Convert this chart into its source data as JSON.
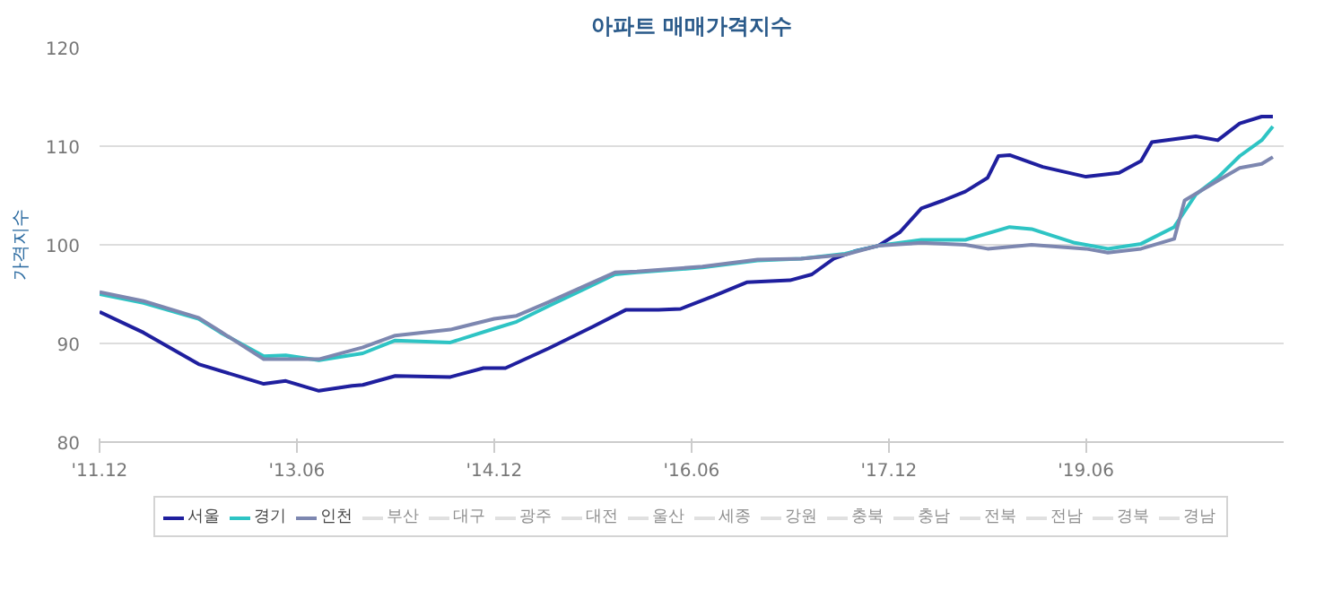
{
  "chart_data": {
    "type": "line",
    "title": "아파트 매매가격지수",
    "ylabel": "가격지수",
    "ylim": [
      80,
      120
    ],
    "yticks": [
      80,
      90,
      100,
      110,
      120
    ],
    "xlim": [
      "2011-12",
      "2020-12"
    ],
    "xticks": [
      {
        "value": "2011-12",
        "label": "'11.12"
      },
      {
        "value": "2013-06",
        "label": "'13.06"
      },
      {
        "value": "2014-12",
        "label": "'14.12"
      },
      {
        "value": "2016-06",
        "label": "'16.06"
      },
      {
        "value": "2017-12",
        "label": "'17.12"
      },
      {
        "value": "2019-06",
        "label": "'19.06"
      }
    ],
    "grid": "y",
    "legend": "bottom",
    "marker": "none",
    "line_style": "solid",
    "series": [
      {
        "name": "서울",
        "color": "#1f1f9e",
        "x": [
          "2011-12",
          "2012-04",
          "2012-09",
          "2013-03",
          "2013-05",
          "2013-08",
          "2013-11",
          "2013-12",
          "2014-03",
          "2014-08",
          "2014-11",
          "2015-01",
          "2015-05",
          "2015-09",
          "2015-12",
          "2016-03",
          "2016-05",
          "2016-08",
          "2016-11",
          "2017-03",
          "2017-05",
          "2017-07",
          "2017-09",
          "2017-11",
          "2018-01",
          "2018-03",
          "2018-05",
          "2018-07",
          "2018-09",
          "2018-10",
          "2018-11",
          "2019-02",
          "2019-06",
          "2019-09",
          "2019-11",
          "2019-12",
          "2020-04",
          "2020-06",
          "2020-08",
          "2020-10",
          "2020-11"
        ],
        "values": [
          93.2,
          91.1,
          87.9,
          85.9,
          86.2,
          85.2,
          85.7,
          85.8,
          86.7,
          86.6,
          87.5,
          87.5,
          89.5,
          91.7,
          93.4,
          93.4,
          93.5,
          94.8,
          96.2,
          96.4,
          97.0,
          98.6,
          99.4,
          99.9,
          101.3,
          103.7,
          104.5,
          105.4,
          106.8,
          109.0,
          109.1,
          107.9,
          106.9,
          107.3,
          108.5,
          110.4,
          111.0,
          110.6,
          112.3,
          113.0,
          113.0
        ]
      },
      {
        "name": "경기",
        "color": "#2ec4c4",
        "x": [
          "2011-12",
          "2012-04",
          "2012-09",
          "2012-11",
          "2013-03",
          "2013-05",
          "2013-08",
          "2013-12",
          "2014-03",
          "2014-08",
          "2014-12",
          "2015-02",
          "2015-05",
          "2015-08",
          "2015-11",
          "2016-01",
          "2016-07",
          "2016-12",
          "2017-04",
          "2017-08",
          "2017-11",
          "2018-03",
          "2018-07",
          "2018-11",
          "2019-01",
          "2019-05",
          "2019-08",
          "2019-11",
          "2020-02",
          "2020-04",
          "2020-06",
          "2020-08",
          "2020-10",
          "2020-11"
        ],
        "values": [
          95.0,
          94.1,
          92.5,
          91.1,
          88.7,
          88.8,
          88.3,
          89.0,
          90.3,
          90.1,
          91.5,
          92.2,
          93.8,
          95.4,
          97.0,
          97.2,
          97.7,
          98.4,
          98.6,
          99.1,
          99.9,
          100.5,
          100.5,
          101.8,
          101.6,
          100.2,
          99.6,
          100.1,
          101.8,
          105.1,
          106.8,
          109.0,
          110.6,
          112.0
        ]
      },
      {
        "name": "인천",
        "color": "#7d87b0",
        "x": [
          "2011-12",
          "2012-04",
          "2012-09",
          "2012-11",
          "2013-03",
          "2013-08",
          "2013-12",
          "2014-03",
          "2014-08",
          "2014-12",
          "2015-02",
          "2015-05",
          "2015-08",
          "2015-11",
          "2016-01",
          "2016-07",
          "2016-12",
          "2017-04",
          "2017-08",
          "2017-11",
          "2018-03",
          "2018-07",
          "2018-09",
          "2019-01",
          "2019-06",
          "2019-08",
          "2019-11",
          "2020-02",
          "2020-03",
          "2020-06",
          "2020-08",
          "2020-10",
          "2020-11"
        ],
        "values": [
          95.2,
          94.3,
          92.6,
          91.2,
          88.4,
          88.4,
          89.6,
          90.8,
          91.4,
          92.5,
          92.8,
          94.2,
          95.7,
          97.2,
          97.3,
          97.8,
          98.5,
          98.6,
          99.0,
          99.9,
          100.2,
          100.0,
          99.6,
          100.0,
          99.6,
          99.2,
          99.6,
          100.6,
          104.5,
          106.5,
          107.8,
          108.2,
          108.9
        ]
      },
      {
        "name": "부산",
        "color": "#cccccc"
      },
      {
        "name": "대구",
        "color": "#cccccc"
      },
      {
        "name": "광주",
        "color": "#cccccc"
      },
      {
        "name": "대전",
        "color": "#cccccc"
      },
      {
        "name": "울산",
        "color": "#cccccc"
      },
      {
        "name": "세종",
        "color": "#cccccc"
      },
      {
        "name": "강원",
        "color": "#cccccc"
      },
      {
        "name": "충북",
        "color": "#cccccc"
      },
      {
        "name": "충남",
        "color": "#cccccc"
      },
      {
        "name": "전북",
        "color": "#cccccc"
      },
      {
        "name": "전남",
        "color": "#cccccc"
      },
      {
        "name": "경북",
        "color": "#cccccc"
      },
      {
        "name": "경남",
        "color": "#cccccc"
      }
    ]
  }
}
